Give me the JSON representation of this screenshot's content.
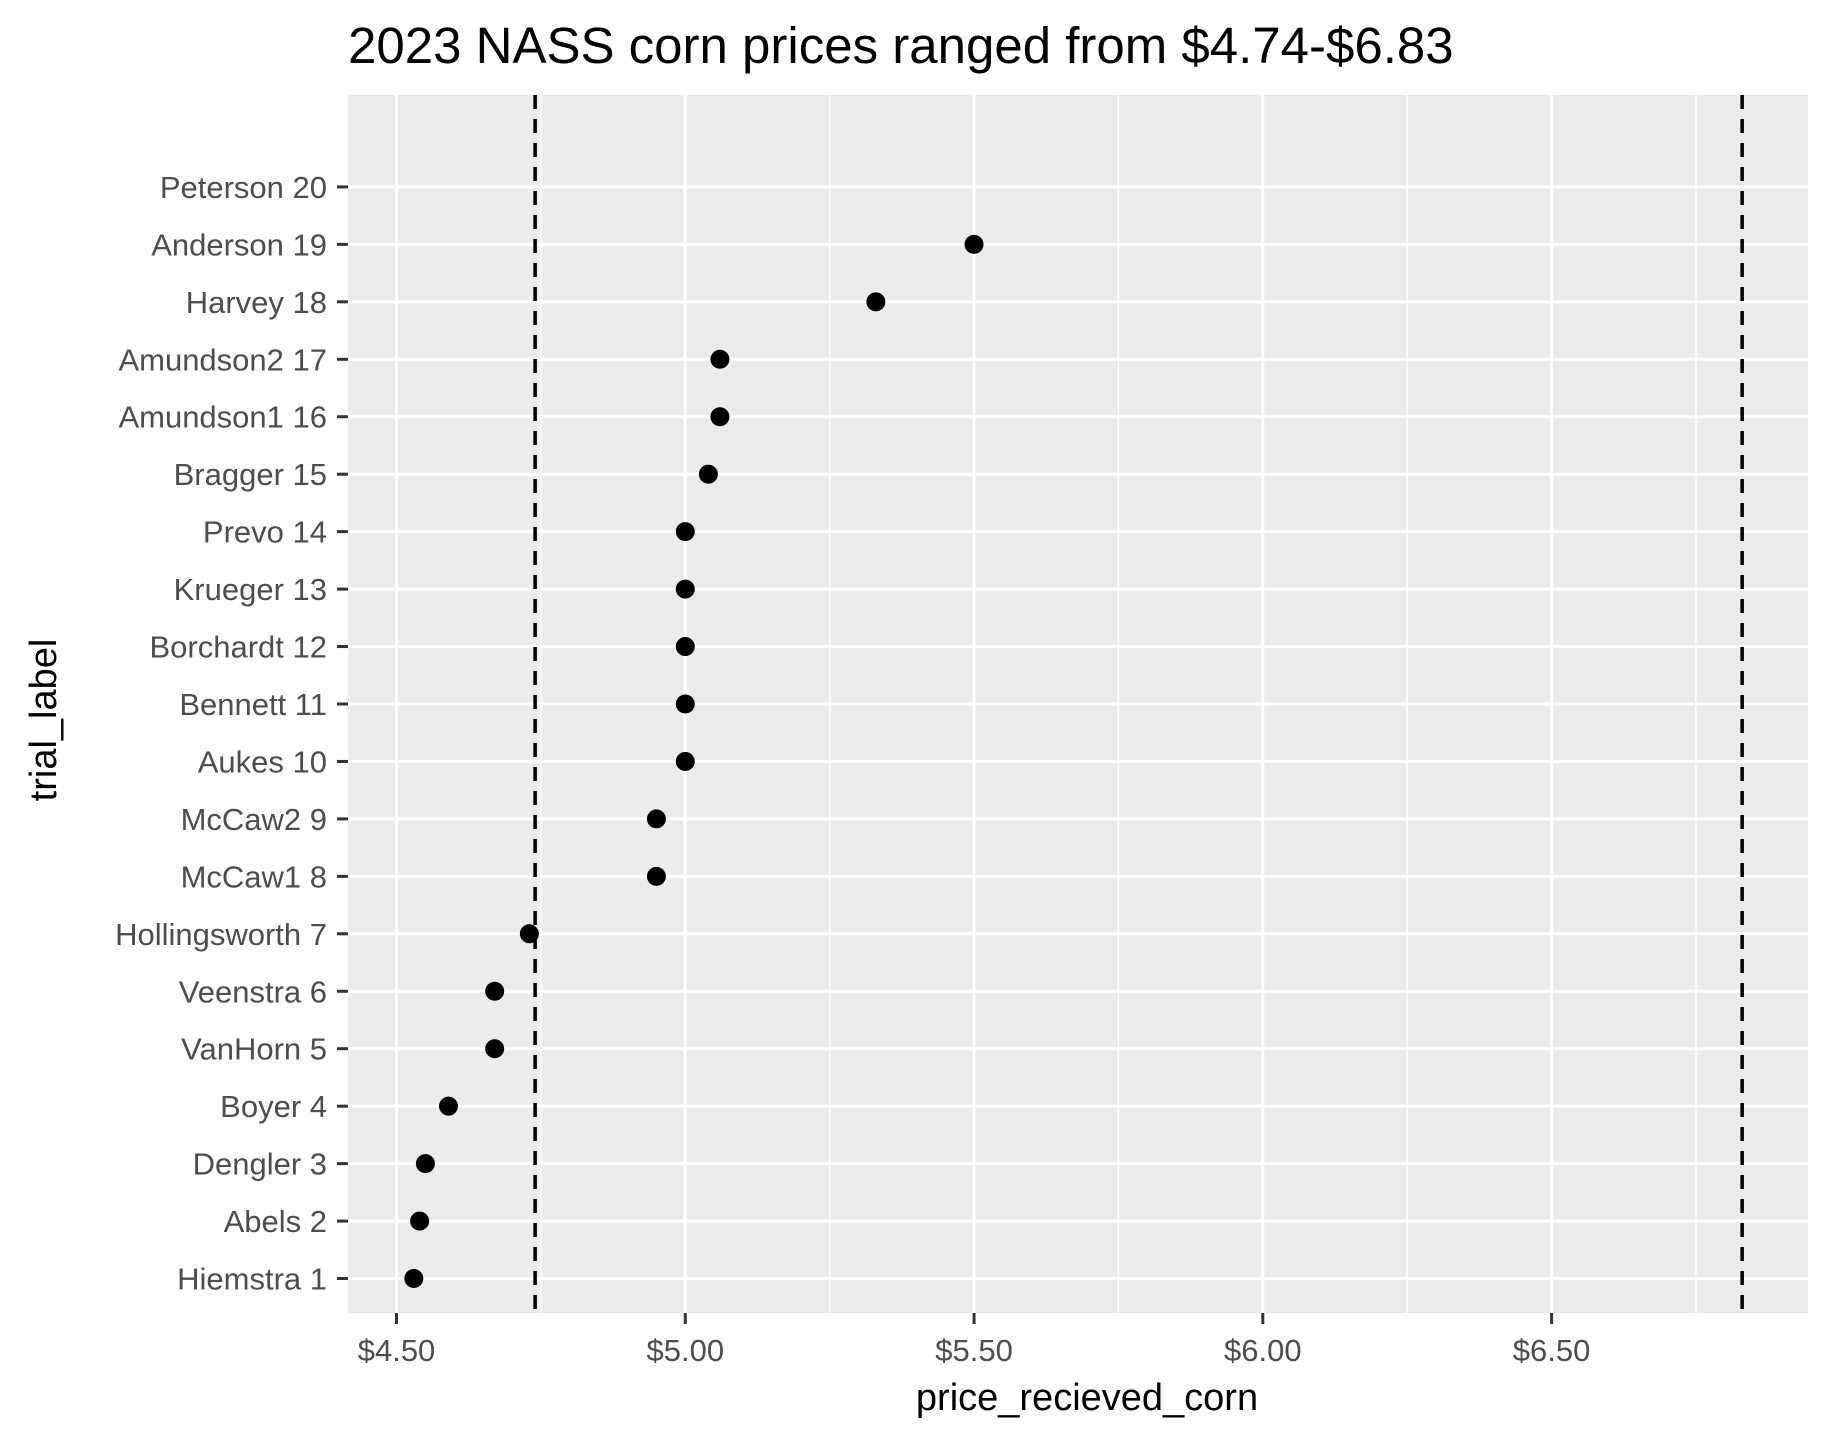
{
  "chart_data": {
    "type": "scatter",
    "title": "2023 NASS corn prices ranged from $4.74-$6.83",
    "xlabel": "price_recieved_corn",
    "ylabel": "trial_label",
    "xlim": [
      4.416,
      6.944
    ],
    "x_ticks": [
      {
        "value": 4.5,
        "label": "$4.50"
      },
      {
        "value": 5.0,
        "label": "$5.00"
      },
      {
        "value": 5.5,
        "label": "$5.50"
      },
      {
        "value": 6.0,
        "label": "$6.00"
      },
      {
        "value": 6.5,
        "label": "$6.50"
      }
    ],
    "x_minor_gridlines": [
      4.75,
      5.25,
      5.75,
      6.25,
      6.75
    ],
    "categories": [
      "Hiemstra 1",
      "Abels 2",
      "Dengler 3",
      "Boyer 4",
      "VanHorn 5",
      "Veenstra 6",
      "Hollingsworth 7",
      "McCaw1 8",
      "McCaw2 9",
      "Aukes 10",
      "Bennett 11",
      "Borchardt 12",
      "Krueger 13",
      "Prevo 14",
      "Bragger 15",
      "Amundson1 16",
      "Amundson2 17",
      "Harvey 18",
      "Anderson 19",
      "Peterson 20"
    ],
    "values": [
      4.53,
      4.54,
      4.55,
      4.59,
      4.67,
      4.67,
      4.73,
      4.95,
      4.95,
      5.0,
      5.0,
      5.0,
      5.0,
      5.0,
      5.04,
      5.06,
      5.06,
      5.33,
      5.5,
      null
    ],
    "reference_lines": [
      {
        "value": 4.74,
        "style": "dashed"
      },
      {
        "value": 6.83,
        "style": "dashed"
      }
    ],
    "grid": true,
    "legend": "none",
    "colors": {
      "panel_background": "#ebebeb",
      "gridline": "#ffffff",
      "point": "#000000",
      "reference_line": "#000000",
      "tick_text": "#4d4d4d"
    }
  }
}
